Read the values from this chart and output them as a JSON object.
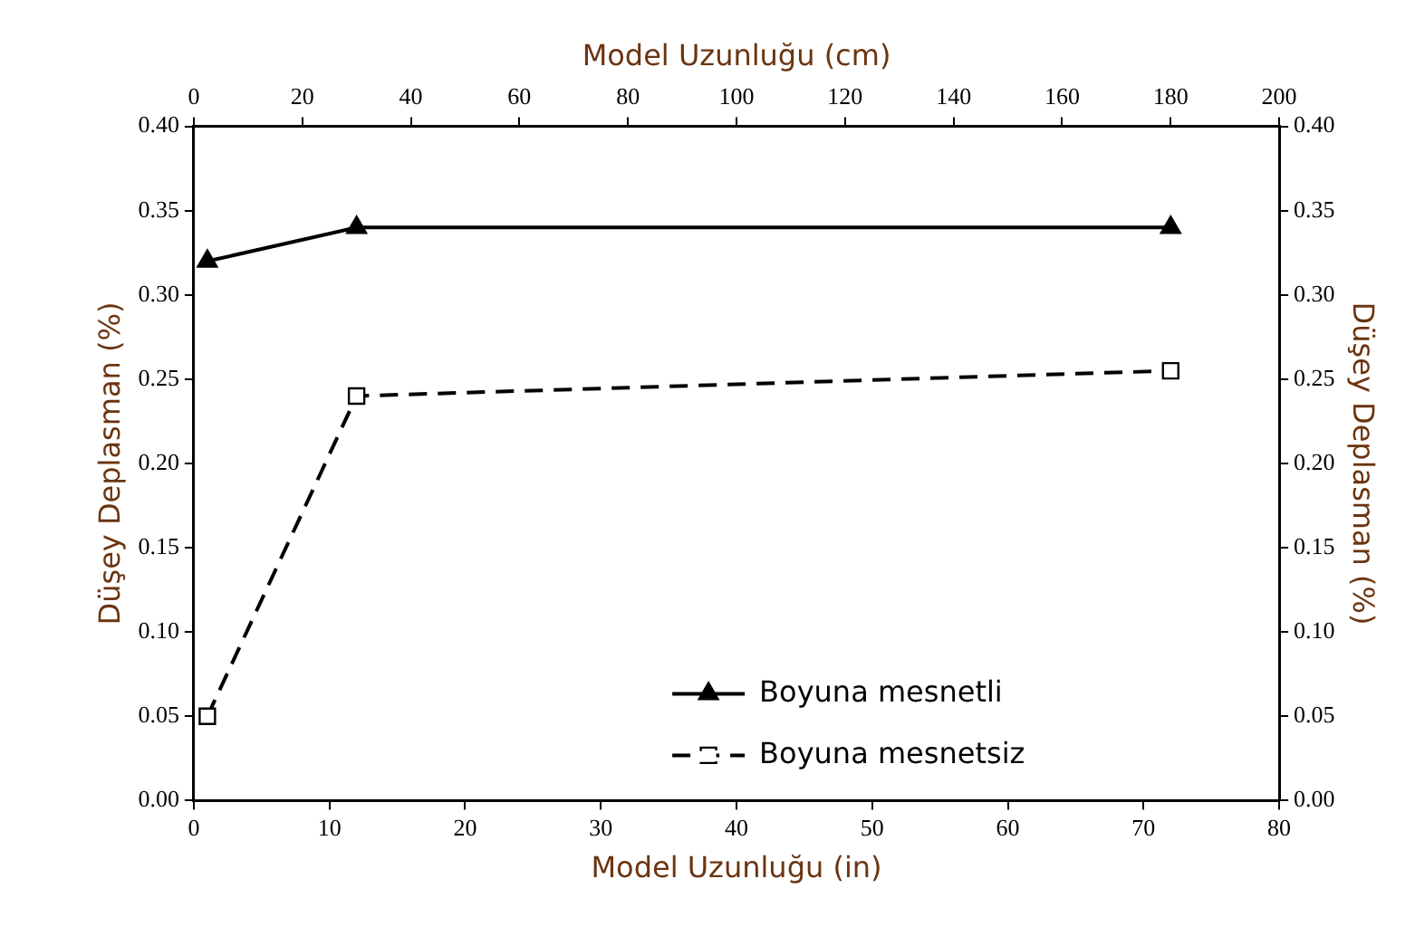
{
  "chart_data": {
    "type": "line",
    "xlabel": "Model Uzunluğu (in)",
    "x2label": "Model Uzunluğu (cm)",
    "ylabel": "Düşey Deplasman (%)",
    "y2label": "Düşey Deplasman (%)",
    "x": [
      1,
      12,
      72
    ],
    "series": [
      {
        "name": "Boyuna mesnetli",
        "color": "#000000",
        "values": [
          0.32,
          0.34,
          0.34
        ],
        "marker": "triangle",
        "line_style": "solid"
      },
      {
        "name": "Boyuna mesnetsiz",
        "color": "#000000",
        "values": [
          0.05,
          0.24,
          0.255
        ],
        "marker": "square",
        "line_style": "dashed"
      }
    ],
    "xlim": [
      0,
      80
    ],
    "xticks": [
      0,
      10,
      20,
      30,
      40,
      50,
      60,
      70,
      80
    ],
    "x2lim": [
      0,
      200
    ],
    "x2ticks": [
      0,
      20,
      40,
      60,
      80,
      100,
      120,
      140,
      160,
      180,
      200
    ],
    "ylim": [
      0,
      0.4
    ],
    "yticks": [
      {
        "value": 0,
        "label": "0.00"
      },
      {
        "value": 0.05,
        "label": "0.05"
      },
      {
        "value": 0.1,
        "label": "0.10"
      },
      {
        "value": 0.15,
        "label": "0.15"
      },
      {
        "value": 0.2,
        "label": "0.20"
      },
      {
        "value": 0.25,
        "label": "0.25"
      },
      {
        "value": 0.3,
        "label": "0.30"
      },
      {
        "value": 0.35,
        "label": "0.35"
      },
      {
        "value": 0.4,
        "label": "0.40"
      }
    ],
    "y2lim": [
      0,
      0.4
    ],
    "y2ticks": [
      {
        "value": 0,
        "label": "0.00"
      },
      {
        "value": 0.05,
        "label": "0.05"
      },
      {
        "value": 0.1,
        "label": "0.10"
      },
      {
        "value": 0.15,
        "label": "0.15"
      },
      {
        "value": 0.2,
        "label": "0.20"
      },
      {
        "value": 0.25,
        "label": "0.25"
      },
      {
        "value": 0.3,
        "label": "0.30"
      },
      {
        "value": 0.35,
        "label": "0.35"
      },
      {
        "value": 0.4,
        "label": "0.40"
      }
    ],
    "grid": false,
    "legend": "bottom right"
  }
}
